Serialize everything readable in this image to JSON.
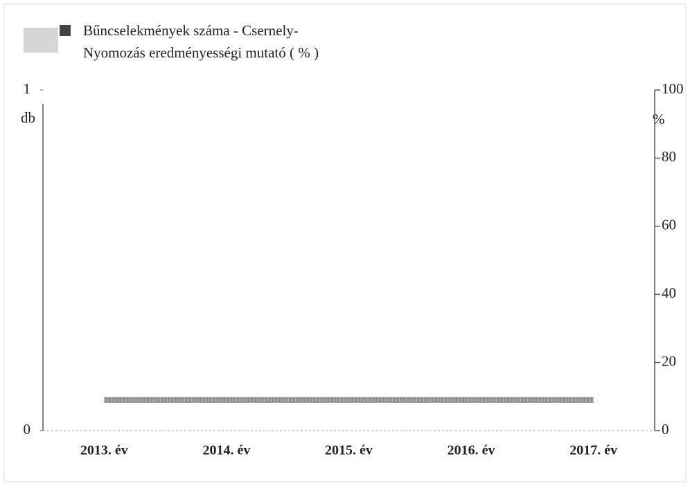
{
  "chart_data": {
    "type": "bar-line",
    "categories": [
      "2013. év",
      "2014. év",
      "2015. év",
      "2016. év",
      "2017. év"
    ],
    "series": [
      {
        "name": "Bűncselekmények száma - Csernely-",
        "color": "#444444",
        "type": "bar",
        "values": [
          0,
          0,
          0,
          0,
          0
        ]
      },
      {
        "name": "Nyomozás eredményességi mutató ( % )",
        "color": "#8a8a8a",
        "type": "line",
        "axis": "y2",
        "values": [
          9,
          9,
          9,
          9,
          9
        ]
      }
    ],
    "ylabel": "db",
    "y2label": "%",
    "ylim": [
      0,
      1
    ],
    "yticks": [
      0,
      1
    ],
    "y2lim": [
      0,
      100
    ],
    "y2ticks": [
      0,
      20,
      40,
      60,
      80,
      100
    ],
    "grid": false
  }
}
